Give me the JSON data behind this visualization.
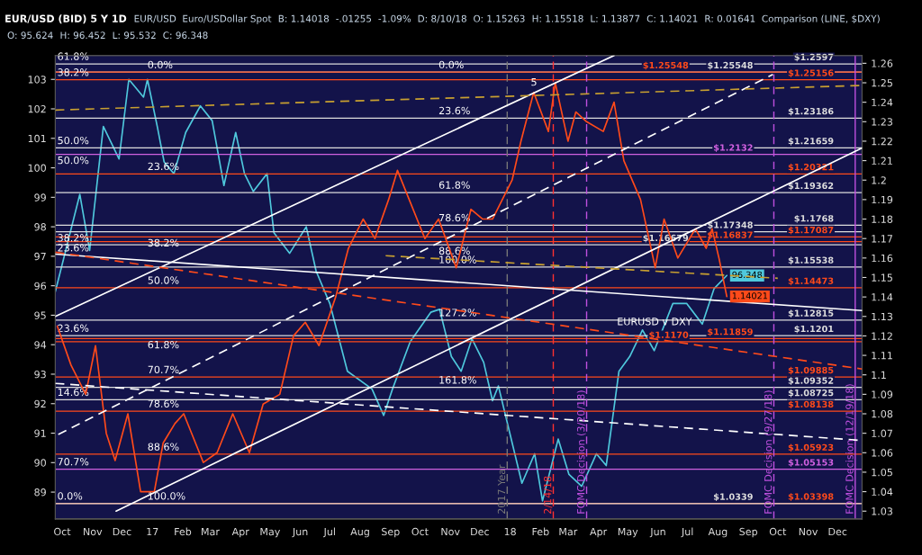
{
  "chart_data": {
    "type": "line",
    "title": "EUR/USD (BID) 5 Y 1D",
    "annotations": [
      "EUR/USD",
      "Euro/USDollar Spot",
      "B: 1.14018",
      "-.01255",
      "-1.09%",
      "D: 8/10/18",
      "O: 1.15263",
      "H: 1.15518",
      "L: 1.13877",
      "C: 1.14021",
      "R: 0.01641",
      "Comparison (LINE, $DXY)",
      "O: 95.624",
      "H: 96.452",
      "L: 95.532",
      "C: 96.348",
      {
        "text": "61.8%",
        "x": "2016-09-26",
        "y": 1.2597
      },
      {
        "text": "38.2%",
        "x": "2016-09-26",
        "y": 1.2515
      },
      {
        "text": "50.0%",
        "x": "2016-09-26",
        "y": 1.2165
      },
      {
        "text": "50.0%",
        "x": "2016-09-26",
        "y": 1.2132
      },
      {
        "text": "38.2%",
        "x": "2016-09-26",
        "y": 1.1734
      },
      {
        "text": "23.6%",
        "x": "2016-09-26",
        "y": 1.1683
      },
      {
        "text": "23.6%",
        "x": "2016-09-26",
        "y": 1.1201
      },
      {
        "text": "14.6%",
        "x": "2016-09-26",
        "y": 1.0872
      },
      {
        "text": "70.7%",
        "x": "2016-09-26",
        "y": 1.0515
      },
      {
        "text": "0.0%",
        "x": "2016-09-26",
        "y": 1.0339
      },
      {
        "text": "0.0%",
        "x": "2016-12-27",
        "y": 1.2554
      },
      {
        "text": "23.6%",
        "x": "2016-12-27",
        "y": 1.2032
      },
      {
        "text": "38.2%",
        "x": "2016-12-27",
        "y": 1.1708
      },
      {
        "text": "50.0%",
        "x": "2016-12-27",
        "y": 1.1447
      },
      {
        "text": "61.8%",
        "x": "2016-12-27",
        "y": 1.1185
      },
      {
        "text": "70.7%",
        "x": "2016-12-27",
        "y": 1.0988
      },
      {
        "text": "78.6%",
        "x": "2016-12-27",
        "y": 1.0813
      },
      {
        "text": "88.6%",
        "x": "2016-12-27",
        "y": 1.0592
      },
      {
        "text": "100.0%",
        "x": "2016-12-27",
        "y": 1.0339
      },
      {
        "text": "0.0%",
        "x": "2017-10-20",
        "y": 1.2554
      },
      {
        "text": "23.6%",
        "x": "2017-10-20",
        "y": 1.2318
      },
      {
        "text": "61.8%",
        "x": "2017-10-20",
        "y": 1.1936
      },
      {
        "text": "78.6%",
        "x": "2017-10-20",
        "y": 1.1768
      },
      {
        "text": "88.6%",
        "x": "2017-10-20",
        "y": 1.1667
      },
      {
        "text": "100.0%",
        "x": "2017-10-20",
        "y": 1.1553
      },
      {
        "text": "127.2%",
        "x": "2017-10-20",
        "y": 1.1281
      },
      {
        "text": "161.8%",
        "x": "2017-10-20",
        "y": 1.0935
      },
      {
        "text": "5",
        "x": "2018-01-22",
        "y": 1.2465
      },
      {
        "text": "EURUSD v DXY",
        "x": "2018-04-20",
        "y": 1.1235
      }
    ],
    "xlim": [
      "2016-09-24",
      "2018-12-26"
    ],
    "xticks": [
      {
        "value": "2016-10-01",
        "label": "Oct"
      },
      {
        "value": "2016-11-01",
        "label": "Nov"
      },
      {
        "value": "2016-12-01",
        "label": "Dec"
      },
      {
        "value": "2017-01-01",
        "label": "17"
      },
      {
        "value": "2017-02-01",
        "label": "Feb"
      },
      {
        "value": "2017-03-01",
        "label": "Mar"
      },
      {
        "value": "2017-04-01",
        "label": "Apr"
      },
      {
        "value": "2017-05-01",
        "label": "May"
      },
      {
        "value": "2017-06-01",
        "label": "Jun"
      },
      {
        "value": "2017-07-01",
        "label": "Jul"
      },
      {
        "value": "2017-08-01",
        "label": "Aug"
      },
      {
        "value": "2017-09-01",
        "label": "Sep"
      },
      {
        "value": "2017-10-01",
        "label": "Oct"
      },
      {
        "value": "2017-11-01",
        "label": "Nov"
      },
      {
        "value": "2017-12-01",
        "label": "Dec"
      },
      {
        "value": "2018-01-01",
        "label": "18"
      },
      {
        "value": "2018-02-01",
        "label": "Feb"
      },
      {
        "value": "2018-03-01",
        "label": "Mar"
      },
      {
        "value": "2018-04-01",
        "label": "Apr"
      },
      {
        "value": "2018-05-01",
        "label": "May"
      },
      {
        "value": "2018-06-01",
        "label": "Jun"
      },
      {
        "value": "2018-07-01",
        "label": "Jul"
      },
      {
        "value": "2018-08-01",
        "label": "Aug"
      },
      {
        "value": "2018-09-01",
        "label": "Sep"
      },
      {
        "value": "2018-10-01",
        "label": "Oct"
      },
      {
        "value": "2018-11-01",
        "label": "Nov"
      },
      {
        "value": "2018-12-01",
        "label": "Dec"
      }
    ],
    "ylim": [
      1.026,
      1.264
    ],
    "yticks": [
      1.03,
      1.04,
      1.05,
      1.06,
      1.07,
      1.08,
      1.09,
      {
        "value": 1.1,
        "label": "1.1"
      },
      1.11,
      1.12,
      1.13,
      1.14,
      1.15,
      1.16,
      1.17,
      1.18,
      1.19,
      {
        "value": 1.2,
        "label": "1.2"
      },
      1.21,
      1.22,
      1.23,
      1.24,
      1.25,
      1.26
    ],
    "y2lim": [
      88.09,
      103.81
    ],
    "y2ticks": [
      89,
      90,
      91,
      92,
      93,
      94,
      95,
      96,
      97,
      98,
      99,
      100,
      101,
      102,
      103
    ],
    "series": [
      {
        "color": "#4fc8dc",
        "axis": "y2",
        "x": [
          "2016-09-24",
          "2016-10-19",
          "2016-10-29",
          "2016-11-12",
          "2016-11-28",
          "2016-12-08",
          "2016-12-23",
          "2016-12-27",
          "2017-01-06",
          "2017-01-13",
          "2017-01-23",
          "2017-02-04",
          "2017-02-19",
          "2017-03-03",
          "2017-03-15",
          "2017-03-27",
          "2017-04-05",
          "2017-04-14",
          "2017-04-28",
          "2017-05-05",
          "2017-05-21",
          "2017-06-07",
          "2017-06-17",
          "2017-07-01",
          "2017-07-19",
          "2017-08-13",
          "2017-08-25",
          "2017-09-03",
          "2017-09-21",
          "2017-10-12",
          "2017-10-21",
          "2017-11-02",
          "2017-11-12",
          "2017-11-23",
          "2017-12-05",
          "2017-12-14",
          "2017-12-20",
          "2018-01-13",
          "2018-01-26",
          "2018-02-03",
          "2018-02-19",
          "2018-03-02",
          "2018-03-15",
          "2018-03-30",
          "2018-04-09",
          "2018-04-22",
          "2018-05-03",
          "2018-05-16",
          "2018-05-28",
          "2018-06-16",
          "2018-06-30",
          "2018-07-16",
          "2018-07-28",
          "2018-08-10"
        ],
        "values": [
          95.8,
          99.1,
          97.2,
          101.4,
          100.3,
          103.0,
          102.4,
          103.0,
          101.4,
          100.2,
          99.8,
          101.2,
          102.1,
          101.6,
          99.4,
          101.2,
          99.8,
          99.2,
          99.8,
          97.8,
          97.1,
          98.0,
          96.5,
          95.4,
          93.1,
          92.5,
          91.6,
          92.5,
          94.1,
          95.1,
          95.2,
          93.6,
          93.1,
          94.2,
          93.4,
          92.1,
          92.6,
          89.3,
          90.3,
          88.7,
          90.8,
          89.6,
          89.2,
          90.3,
          89.9,
          93.1,
          93.6,
          94.5,
          93.8,
          95.4,
          95.4,
          94.7,
          95.9,
          96.348
        ],
        "value_labels": [
          null,
          null,
          null,
          null,
          null,
          null,
          null,
          null,
          null,
          null,
          null,
          null,
          null,
          null,
          null,
          null,
          null,
          null,
          null,
          null,
          null,
          null,
          null,
          null,
          null,
          null,
          null,
          null,
          null,
          null,
          null,
          null,
          null,
          null,
          null,
          null,
          null,
          null,
          null,
          null,
          null,
          null,
          null,
          null,
          null,
          null,
          null,
          null,
          null,
          null,
          null,
          null,
          null,
          "96.348"
        ]
      },
      {
        "color": "#ff4a1a",
        "x": [
          "2016-09-26",
          "2016-10-10",
          "2016-10-25",
          "2016-11-04",
          "2016-11-15",
          "2016-11-24",
          "2016-12-07",
          "2016-12-20",
          "2017-01-03",
          "2017-01-12",
          "2017-01-24",
          "2017-02-02",
          "2017-02-22",
          "2017-03-08",
          "2017-03-24",
          "2017-04-10",
          "2017-04-24",
          "2017-05-11",
          "2017-05-25",
          "2017-06-06",
          "2017-06-20",
          "2017-07-07",
          "2017-07-20",
          "2017-08-04",
          "2017-08-16",
          "2017-08-30",
          "2017-09-08",
          "2017-09-20",
          "2017-10-06",
          "2017-10-20",
          "2017-11-07",
          "2017-11-22",
          "2017-12-04",
          "2017-12-14",
          "2018-01-03",
          "2018-01-12",
          "2018-01-25",
          "2018-02-09",
          "2018-02-16",
          "2018-03-01",
          "2018-03-09",
          "2018-03-20",
          "2018-04-06",
          "2018-04-17",
          "2018-04-27",
          "2018-05-14",
          "2018-05-29",
          "2018-06-07",
          "2018-06-21",
          "2018-07-09",
          "2018-07-20",
          "2018-07-26",
          "2018-08-02",
          "2018-08-10"
        ],
        "values": [
          1.125,
          1.105,
          1.09,
          1.115,
          1.07,
          1.056,
          1.08,
          1.04,
          1.04,
          1.065,
          1.075,
          1.08,
          1.055,
          1.06,
          1.08,
          1.06,
          1.085,
          1.09,
          1.12,
          1.127,
          1.115,
          1.14,
          1.165,
          1.18,
          1.17,
          1.19,
          1.205,
          1.19,
          1.17,
          1.18,
          1.155,
          1.185,
          1.18,
          1.18,
          1.2,
          1.22,
          1.245,
          1.225,
          1.25,
          1.22,
          1.235,
          1.23,
          1.225,
          1.24,
          1.21,
          1.19,
          1.155,
          1.18,
          1.16,
          1.175,
          1.165,
          1.175,
          1.16,
          1.14021
        ],
        "value_labels": [
          null,
          null,
          null,
          null,
          null,
          null,
          null,
          null,
          null,
          null,
          null,
          null,
          null,
          null,
          null,
          null,
          null,
          null,
          null,
          null,
          null,
          null,
          null,
          null,
          null,
          null,
          null,
          null,
          null,
          null,
          null,
          null,
          null,
          null,
          null,
          null,
          null,
          null,
          null,
          null,
          null,
          null,
          null,
          null,
          null,
          null,
          null,
          null,
          null,
          null,
          null,
          null,
          null,
          "1.14021"
        ]
      },
      {
        "color": "#ffffff",
        "x": [
          "2016-11-25",
          "2018-12-26"
        ],
        "values": [
          1.03,
          1.2165
        ]
      },
      {
        "color": "#ffffff",
        "x": [
          "2016-09-24",
          "2018-04-17"
        ],
        "values": [
          1.13,
          1.264
        ]
      },
      {
        "color": "#ffffff",
        "line_style": "dashed",
        "x": [
          "2016-09-27",
          "2018-09-26"
        ],
        "values": [
          1.0694,
          1.2543
        ]
      },
      {
        "color": "#ffffff",
        "x": [
          "2016-09-24",
          "2018-12-26"
        ],
        "values": [
          1.162,
          1.133
        ]
      },
      {
        "color": "#ff4a1a",
        "line_style": "dashed",
        "x": [
          "2016-09-24",
          "2018-12-26"
        ],
        "values": [
          1.163,
          1.103
        ]
      },
      {
        "color": "#ffffff",
        "line_style": "dashed",
        "x": [
          "2016-09-24",
          "2018-12-26"
        ],
        "values": [
          1.0956,
          1.0663
        ]
      },
      {
        "color": "#c8a030",
        "line_style": "dashed",
        "x": [
          "2016-09-24",
          "2018-12-26"
        ],
        "values": [
          1.236,
          1.2486
        ]
      },
      {
        "color": "#c8a030",
        "line_style": "dashed",
        "x": [
          "2017-08-27",
          "2018-10-01"
        ],
        "values": [
          1.1612,
          1.1496
        ]
      }
    ],
    "ref_lines": [
      {
        "axis": "y",
        "value": 1.2597,
        "label": "$1.2597",
        "color": "#dddddd"
      },
      {
        "axis": "y",
        "value": 1.25548,
        "label": "$1.25548",
        "color": "#dddddd"
      },
      {
        "axis": "y",
        "value": 1.25548,
        "label": "$1.25548",
        "color": "#ff4a1a"
      },
      {
        "axis": "y",
        "value": 1.25156,
        "label": "$1.25156",
        "color": "#ff4a1a"
      },
      {
        "axis": "y",
        "value": 1.23186,
        "label": "$1.23186",
        "color": "#dddddd"
      },
      {
        "axis": "y",
        "value": 1.21659,
        "label": "$1.21659",
        "color": "#dddddd"
      },
      {
        "axis": "y",
        "value": 1.2132,
        "label": "$1.2132",
        "color": "#d060e0"
      },
      {
        "axis": "y",
        "value": 1.20321,
        "label": "$1.20321",
        "color": "#ff4a1a"
      },
      {
        "axis": "y",
        "value": 1.19362,
        "label": "$1.19362",
        "color": "#dddddd"
      },
      {
        "axis": "y",
        "value": 1.1768,
        "label": "$1.1768",
        "color": "#dddddd"
      },
      {
        "axis": "y",
        "value": 1.17348,
        "label": "$1.17348",
        "color": "#dddddd"
      },
      {
        "axis": "y",
        "value": 1.17087,
        "label": "$1.17087",
        "color": "#ff4a1a"
      },
      {
        "axis": "y",
        "value": 1.16837,
        "label": "$1.16837",
        "color": "#ff4a1a"
      },
      {
        "axis": "y",
        "value": 1.16679,
        "label": "$1.16679",
        "color": "#dddddd"
      },
      {
        "axis": "y",
        "value": 1.15538,
        "label": "$1.15538",
        "color": "#dddddd"
      },
      {
        "axis": "y",
        "value": 1.14473,
        "label": "$1.14473",
        "color": "#ff4a1a"
      },
      {
        "axis": "y",
        "value": 1.12815,
        "label": "$1.12815",
        "color": "#dddddd"
      },
      {
        "axis": "y",
        "value": 1.1201,
        "label": "$1.1201",
        "color": "#dddddd"
      },
      {
        "axis": "y",
        "value": 1.11859,
        "label": "$1.11859",
        "color": "#ff4a1a"
      },
      {
        "axis": "y",
        "value": 1.117,
        "label": "$1.1170",
        "color": "#ff4a1a"
      },
      {
        "axis": "y",
        "value": 1.09885,
        "label": "$1.09885",
        "color": "#ff4a1a"
      },
      {
        "axis": "y",
        "value": 1.09352,
        "label": "$1.09352",
        "color": "#dddddd"
      },
      {
        "axis": "y",
        "value": 1.08725,
        "label": "$1.08725",
        "color": "#dddddd"
      },
      {
        "axis": "y",
        "value": 1.08138,
        "label": "$1.08138",
        "color": "#ff4a1a"
      },
      {
        "axis": "y",
        "value": 1.05923,
        "label": "$1.05923",
        "color": "#ff4a1a"
      },
      {
        "axis": "y",
        "value": 1.05153,
        "label": "$1.05153",
        "color": "#d060e0"
      },
      {
        "axis": "y",
        "value": 1.03398,
        "label": "$1.03398",
        "color": "#ff4a1a"
      },
      {
        "axis": "y",
        "value": 1.0339,
        "label": "$1.0339",
        "color": "#dddddd"
      },
      {
        "axis": "x",
        "value": "2017-12-29",
        "label": "2017 Year",
        "color": "#777777",
        "line_style": "dashed"
      },
      {
        "axis": "x",
        "value": "2018-02-14",
        "label": "2/14/18",
        "color": "#ff3030",
        "line_style": "dashed"
      },
      {
        "axis": "x",
        "value": "2018-03-20",
        "label": "FOMC Decision (3/20/18)",
        "color": "#c050e0",
        "line_style": "dashed"
      },
      {
        "axis": "x",
        "value": "2018-09-27",
        "label": "FOMC Decision (9/27/18)",
        "color": "#c050e0",
        "line_style": "dashed"
      },
      {
        "axis": "x",
        "value": "2018-12-19",
        "label": "FOMC Decision (12/19/18)",
        "color": "#c050e0",
        "line_style": "solid"
      }
    ],
    "grid": false,
    "legend": false
  }
}
